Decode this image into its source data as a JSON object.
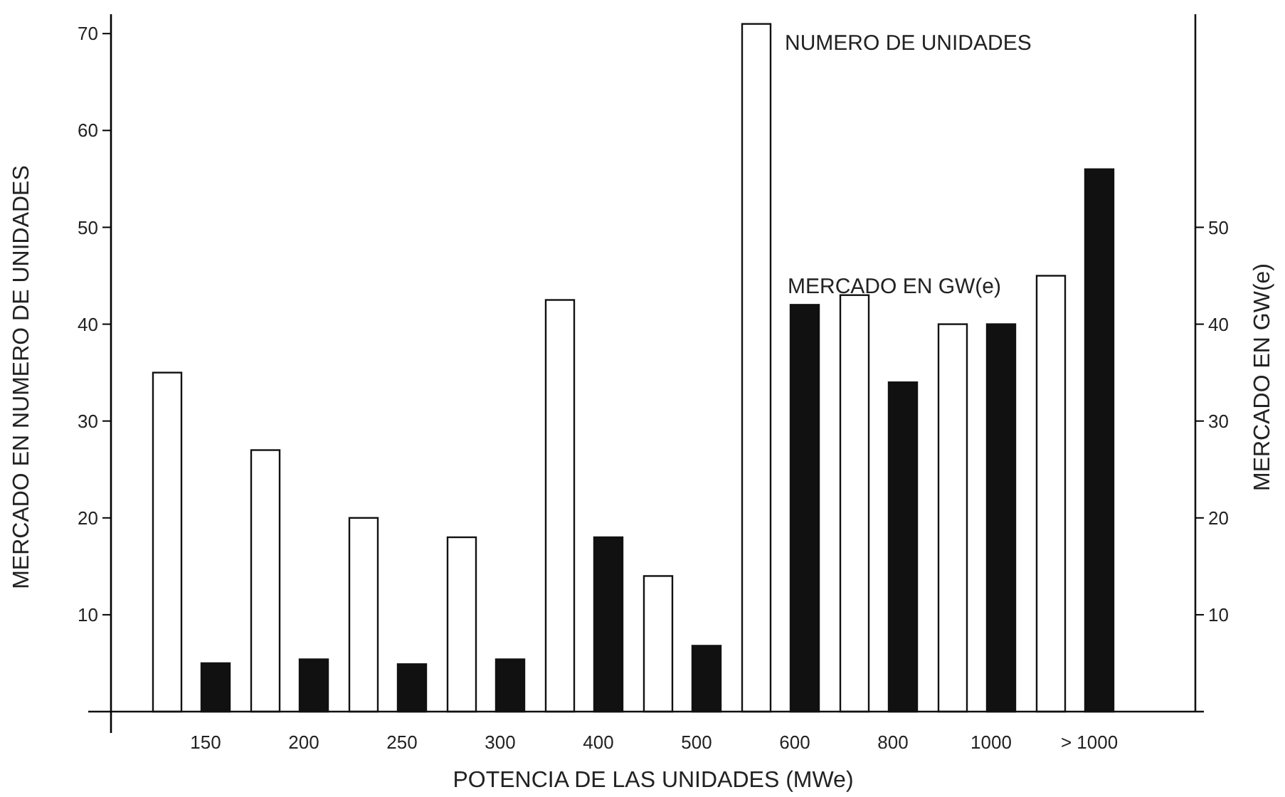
{
  "chart_data": {
    "type": "bar",
    "xlabel": "POTENCIA DE LAS UNIDADES (MWe)",
    "ylabel": "MERCADO EN NUMERO DE UNIDADES",
    "y2label": "MERCADO EN GW(e)",
    "categories": [
      "150",
      "200",
      "250",
      "300",
      "400",
      "500",
      "600",
      "800",
      "1000",
      "> 1000"
    ],
    "series": [
      {
        "name": "NUMERO DE UNIDADES",
        "color": "#ffffff",
        "values": [
          35,
          27,
          20,
          18,
          42.5,
          14,
          71,
          43,
          40,
          45
        ]
      },
      {
        "name": "MERCADO EN GW(e)",
        "color": "#111111",
        "axis": "y2",
        "values": [
          5,
          5.4,
          4.9,
          5.4,
          18,
          6.8,
          42,
          34,
          40,
          56
        ]
      }
    ],
    "ylim": [
      0,
      72
    ],
    "yticks": [
      10,
      20,
      30,
      40,
      50,
      60,
      70
    ],
    "y2lim": [
      0,
      72
    ],
    "y2ticks": [
      10,
      20,
      30,
      40,
      50
    ],
    "grid": false,
    "legend": false
  }
}
